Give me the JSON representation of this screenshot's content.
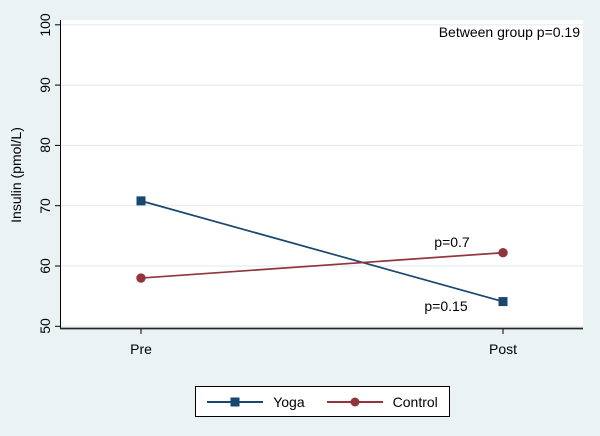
{
  "colors": {
    "background": "#eaf2f3",
    "plot_bg": "#ffffff",
    "grid": "#e4eef2",
    "axis": "#000000",
    "x_axis_line": "#262626"
  },
  "chart_data": {
    "type": "line",
    "title": "",
    "xlabel": "",
    "ylabel": "Insulin (pmol/L)",
    "x": [
      "Pre",
      "Post"
    ],
    "series": [
      {
        "name": "Yoga",
        "values": [
          70.8,
          54.1
        ],
        "color": "#1a476f",
        "marker": "square",
        "p_label": "p=0.15"
      },
      {
        "name": "Control",
        "values": [
          58,
          62.2
        ],
        "color": "#90353b",
        "marker": "circle",
        "p_label": "p=0.7"
      }
    ],
    "annotation": "Between group p=0.19",
    "ylim": [
      50,
      100
    ],
    "yticks": [
      50,
      60,
      70,
      80,
      90,
      100
    ],
    "grid": true,
    "legend_position": "bottom-center"
  }
}
